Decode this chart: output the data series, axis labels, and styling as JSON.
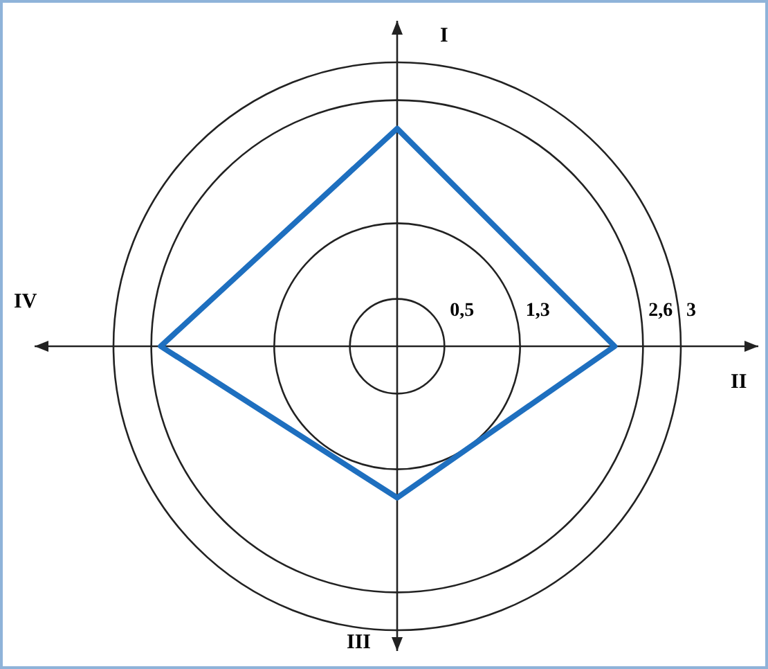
{
  "chart_data": {
    "type": "radar",
    "categories": [
      "I",
      "II",
      "III",
      "IV"
    ],
    "series": [
      {
        "color": "#1e6fbf",
        "values": [
          2.3,
          2.3,
          1.6,
          2.5
        ]
      }
    ],
    "ylim": [
      0,
      3
    ],
    "yticks": [
      {
        "value": 0.5,
        "label": "0,5"
      },
      {
        "value": 1.3,
        "label": "1,3"
      },
      {
        "value": 2.6,
        "label": "2,6"
      },
      3
    ],
    "grid": true,
    "marker": "none",
    "legend": false
  }
}
